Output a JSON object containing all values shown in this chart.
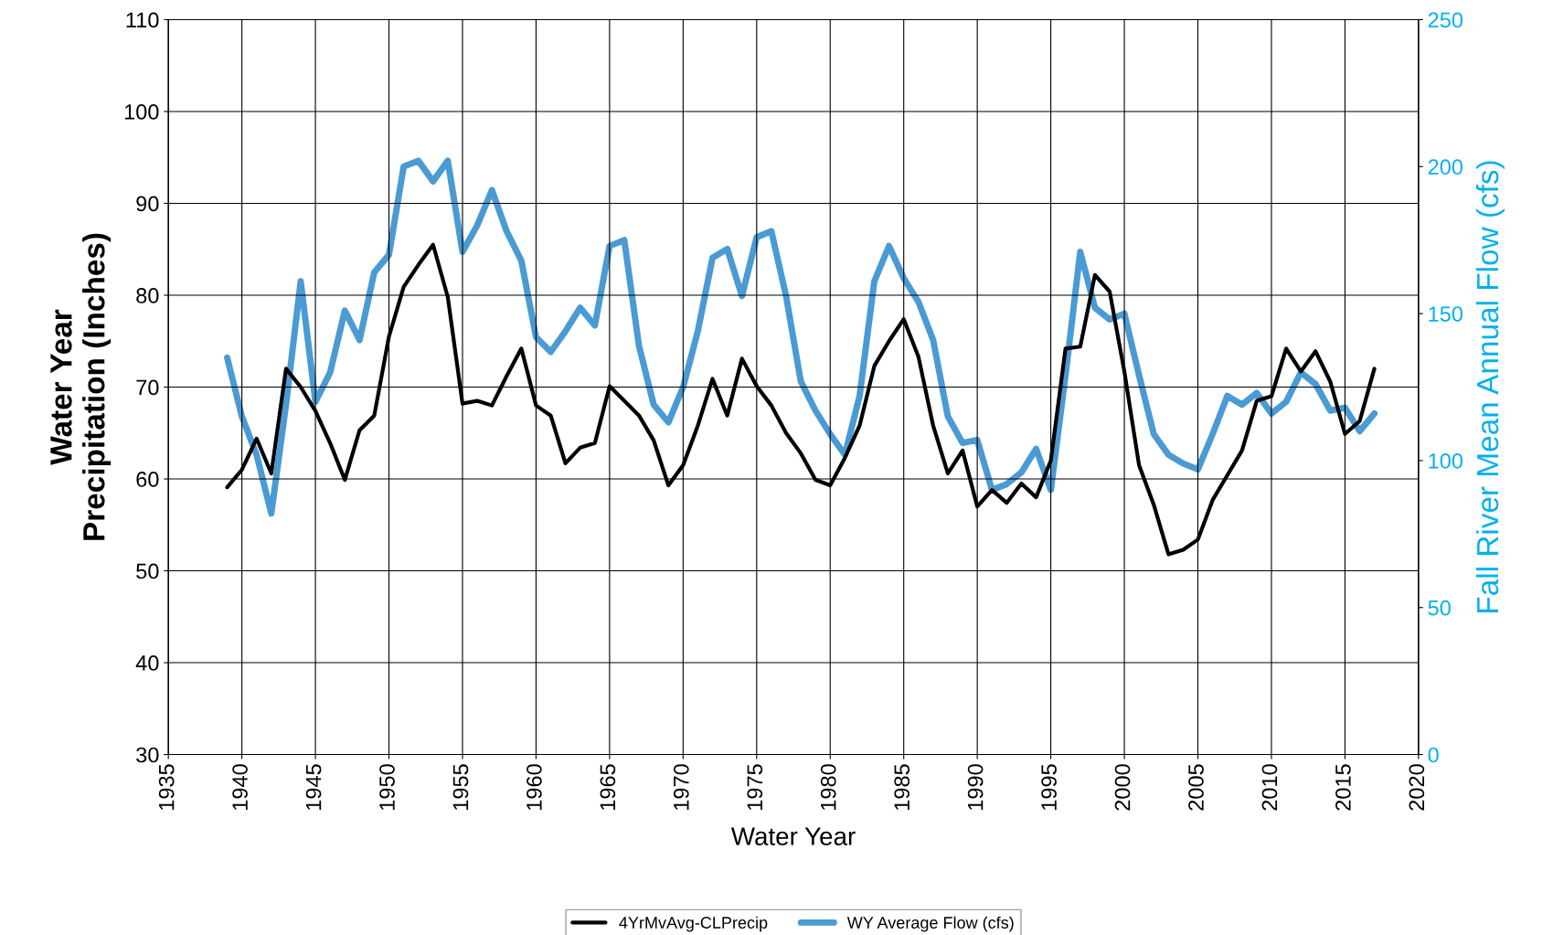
{
  "chart_data": {
    "type": "line",
    "xlabel": "Water Year",
    "ylabel": "Water Year\nPrecipitation (Inches)",
    "y2label": "Fall River Mean Annual Flow (cfs)",
    "x": [
      1939,
      1940,
      1941,
      1942,
      1943,
      1944,
      1945,
      1946,
      1947,
      1948,
      1949,
      1950,
      1951,
      1952,
      1953,
      1954,
      1955,
      1956,
      1957,
      1958,
      1959,
      1960,
      1961,
      1962,
      1963,
      1964,
      1965,
      1966,
      1967,
      1968,
      1969,
      1970,
      1971,
      1972,
      1973,
      1974,
      1975,
      1976,
      1977,
      1978,
      1979,
      1980,
      1981,
      1982,
      1983,
      1984,
      1985,
      1986,
      1987,
      1988,
      1989,
      1990,
      1991,
      1992,
      1993,
      1994,
      1995,
      1996,
      1997,
      1998,
      1999,
      2000,
      2001,
      2002,
      2003,
      2004,
      2005,
      2006,
      2007,
      2008,
      2009,
      2010,
      2011,
      2012,
      2013,
      2014,
      2015,
      2016,
      2017
    ],
    "series": [
      {
        "name": "4YrMvAvg-CLPrecip",
        "color": "#000000",
        "values": [
          59.1,
          61,
          64.4,
          60.6,
          72,
          70,
          67.4,
          63.9,
          59.9,
          65.3,
          66.9,
          75.5,
          80.9,
          83.3,
          85.5,
          79.8,
          68.2,
          68.5,
          68,
          71.2,
          74.2,
          68,
          66.9,
          61.7,
          63.4,
          63.9,
          70.1,
          68.5,
          66.9,
          64.2,
          59.3,
          61.5,
          65.8,
          70.9,
          66.9,
          73.1,
          70.1,
          68,
          65,
          62.8,
          59.9,
          59.3,
          62.3,
          65.8,
          72.3,
          75,
          77.4,
          73.3,
          65.8,
          60.6,
          63.1,
          57,
          58.8,
          57.4,
          59.5,
          58,
          62,
          74.2,
          74.4,
          82.2,
          80.4,
          71.7,
          61.5,
          57.2,
          51.8,
          52.3,
          53.4,
          57.7,
          60.4,
          63.1,
          68.5,
          69,
          74.2,
          71.7,
          73.9,
          70.6,
          64.9,
          66.3,
          72
        ]
      },
      {
        "name": "WY Average Flow (cfs)",
        "color": "#4a9ad4",
        "axis": "y2",
        "values": [
          135,
          115,
          102,
          82,
          119,
          161,
          120,
          130,
          151,
          141,
          164,
          170,
          200,
          202,
          195,
          202,
          171,
          180,
          192,
          178,
          168,
          142,
          137,
          144,
          152,
          146,
          173,
          175,
          139,
          119,
          113,
          125,
          144,
          169,
          172,
          156,
          176,
          178,
          156,
          127,
          117,
          109,
          102,
          122,
          161,
          173,
          162,
          154,
          141,
          115,
          106,
          107,
          90,
          92,
          96,
          104,
          90,
          129,
          171,
          152,
          148,
          150,
          129,
          109,
          102,
          99,
          97,
          109,
          122,
          119,
          123,
          116,
          120,
          130,
          126,
          117,
          118,
          110,
          116
        ]
      }
    ],
    "xlim": [
      1935,
      2020
    ],
    "xticks": [
      1935,
      1940,
      1945,
      1950,
      1955,
      1960,
      1965,
      1970,
      1975,
      1980,
      1985,
      1990,
      1995,
      2000,
      2005,
      2010,
      2015,
      2020
    ],
    "ylim": [
      30,
      110
    ],
    "yticks": [
      30,
      40,
      50,
      60,
      70,
      80,
      90,
      100,
      110
    ],
    "y2lim": [
      0,
      250
    ],
    "y2ticks": [
      0,
      50,
      100,
      150,
      200,
      250
    ],
    "grid": true,
    "legend": "bottom"
  }
}
